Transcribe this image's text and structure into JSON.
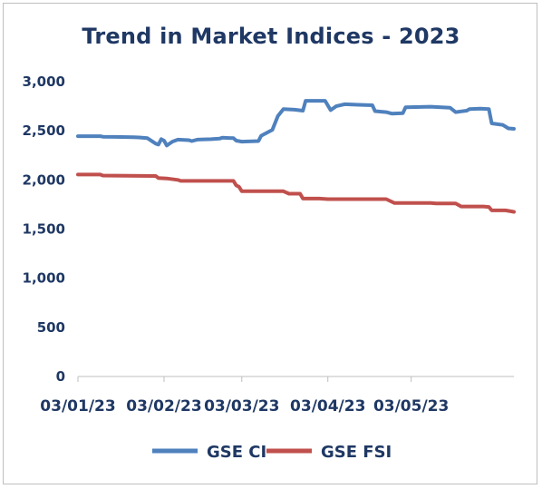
{
  "chart_data": {
    "type": "line",
    "title": "Trend in Market Indices - 2023",
    "xlabel": "",
    "ylabel": "",
    "ylim": [
      0,
      3000
    ],
    "yticks": [
      0,
      500,
      1000,
      1500,
      2000,
      2500,
      3000
    ],
    "ytick_labels": [
      "0",
      "500",
      "1,000",
      "1,500",
      "2,000",
      "2,500",
      "3,000"
    ],
    "xlim": [
      "2023-01-03",
      "2023-06-09"
    ],
    "xticks": [
      "2023-01-03",
      "2023-02-03",
      "2023-03-03",
      "2023-04-03",
      "2023-05-03"
    ],
    "xtick_labels": [
      "03/01/23",
      "03/02/23",
      "03/03/23",
      "03/04/23",
      "03/05/23"
    ],
    "grid": "horizontal",
    "legend": "bottom",
    "series": [
      {
        "name": "GSE CI",
        "color": "#4f81bd",
        "points": [
          [
            "2023-01-03",
            2445
          ],
          [
            "2023-01-11",
            2445
          ],
          [
            "2023-01-12",
            2440
          ],
          [
            "2023-01-23",
            2435
          ],
          [
            "2023-01-25",
            2432
          ],
          [
            "2023-01-28",
            2425
          ],
          [
            "2023-01-31",
            2370
          ],
          [
            "2023-02-01",
            2360
          ],
          [
            "2023-02-02",
            2415
          ],
          [
            "2023-02-03",
            2400
          ],
          [
            "2023-02-04",
            2350
          ],
          [
            "2023-02-06",
            2390
          ],
          [
            "2023-02-08",
            2410
          ],
          [
            "2023-02-12",
            2405
          ],
          [
            "2023-02-13",
            2395
          ],
          [
            "2023-02-15",
            2410
          ],
          [
            "2023-02-20",
            2415
          ],
          [
            "2023-02-23",
            2420
          ],
          [
            "2023-02-24",
            2430
          ],
          [
            "2023-02-28",
            2425
          ],
          [
            "2023-03-01",
            2400
          ],
          [
            "2023-03-03",
            2390
          ],
          [
            "2023-03-09",
            2395
          ],
          [
            "2023-03-10",
            2450
          ],
          [
            "2023-03-14",
            2510
          ],
          [
            "2023-03-16",
            2650
          ],
          [
            "2023-03-18",
            2720
          ],
          [
            "2023-03-22",
            2715
          ],
          [
            "2023-03-25",
            2705
          ],
          [
            "2023-03-26",
            2805
          ],
          [
            "2023-04-02",
            2805
          ],
          [
            "2023-04-04",
            2710
          ],
          [
            "2023-04-06",
            2750
          ],
          [
            "2023-04-09",
            2770
          ],
          [
            "2023-04-14",
            2765
          ],
          [
            "2023-04-19",
            2760
          ],
          [
            "2023-04-20",
            2700
          ],
          [
            "2023-04-24",
            2690
          ],
          [
            "2023-04-26",
            2675
          ],
          [
            "2023-04-30",
            2680
          ],
          [
            "2023-05-01",
            2740
          ],
          [
            "2023-05-10",
            2745
          ],
          [
            "2023-05-17",
            2735
          ],
          [
            "2023-05-19",
            2690
          ],
          [
            "2023-05-23",
            2705
          ],
          [
            "2023-05-24",
            2720
          ],
          [
            "2023-05-28",
            2725
          ],
          [
            "2023-05-31",
            2720
          ],
          [
            "2023-06-01",
            2575
          ],
          [
            "2023-06-05",
            2560
          ],
          [
            "2023-06-07",
            2525
          ],
          [
            "2023-06-09",
            2520
          ]
        ]
      },
      {
        "name": "GSE FSI",
        "color": "#c0504d",
        "points": [
          [
            "2023-01-03",
            2055
          ],
          [
            "2023-01-11",
            2055
          ],
          [
            "2023-01-12",
            2045
          ],
          [
            "2023-01-31",
            2040
          ],
          [
            "2023-02-01",
            2020
          ],
          [
            "2023-02-04",
            2015
          ],
          [
            "2023-02-08",
            2000
          ],
          [
            "2023-02-09",
            1990
          ],
          [
            "2023-02-28",
            1990
          ],
          [
            "2023-03-01",
            1945
          ],
          [
            "2023-03-02",
            1930
          ],
          [
            "2023-03-03",
            1885
          ],
          [
            "2023-03-18",
            1885
          ],
          [
            "2023-03-20",
            1860
          ],
          [
            "2023-03-24",
            1860
          ],
          [
            "2023-03-25",
            1810
          ],
          [
            "2023-03-31",
            1810
          ],
          [
            "2023-04-03",
            1805
          ],
          [
            "2023-04-24",
            1805
          ],
          [
            "2023-04-27",
            1765
          ],
          [
            "2023-05-10",
            1765
          ],
          [
            "2023-05-12",
            1760
          ],
          [
            "2023-05-19",
            1760
          ],
          [
            "2023-05-21",
            1730
          ],
          [
            "2023-05-29",
            1730
          ],
          [
            "2023-05-31",
            1725
          ],
          [
            "2023-06-01",
            1690
          ],
          [
            "2023-06-06",
            1690
          ],
          [
            "2023-06-09",
            1675
          ]
        ]
      }
    ]
  }
}
